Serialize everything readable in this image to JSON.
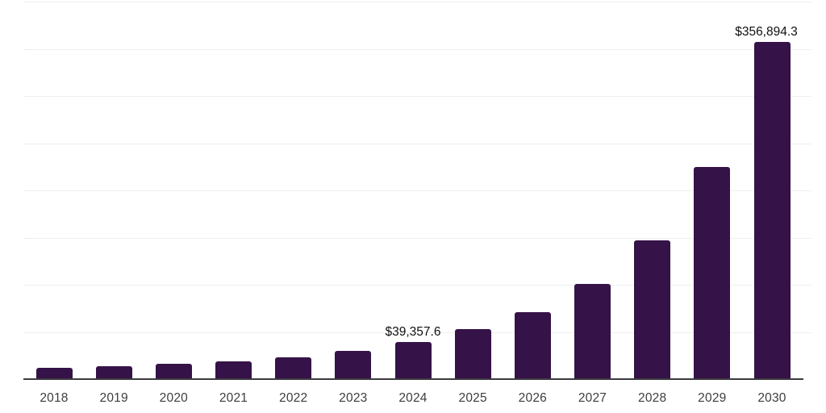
{
  "chart_data": {
    "type": "bar",
    "title": "",
    "xlabel": "",
    "ylabel": "",
    "legend": "none",
    "grid": "horizontal gridlines, no y-axis tick labels",
    "ylim": [
      0,
      400000
    ],
    "gridline_step": 50000,
    "categories": [
      "2018",
      "2019",
      "2020",
      "2021",
      "2022",
      "2023",
      "2024",
      "2025",
      "2026",
      "2027",
      "2028",
      "2029",
      "2030"
    ],
    "values": [
      12300,
      13900,
      16500,
      19000,
      23300,
      29900,
      39357.6,
      52600,
      70600,
      100900,
      147300,
      225200,
      356894.3
    ],
    "data_labels": {
      "2024": "$39,357.6",
      "2030": "$356,894.3"
    },
    "colors": {
      "bar": "#351247",
      "axis_line": "#3c3c40",
      "gridline": "#f0f0f0",
      "x_label_text": "#3d3d3d",
      "data_label_text": "#101010",
      "background": "#ffffff"
    }
  }
}
